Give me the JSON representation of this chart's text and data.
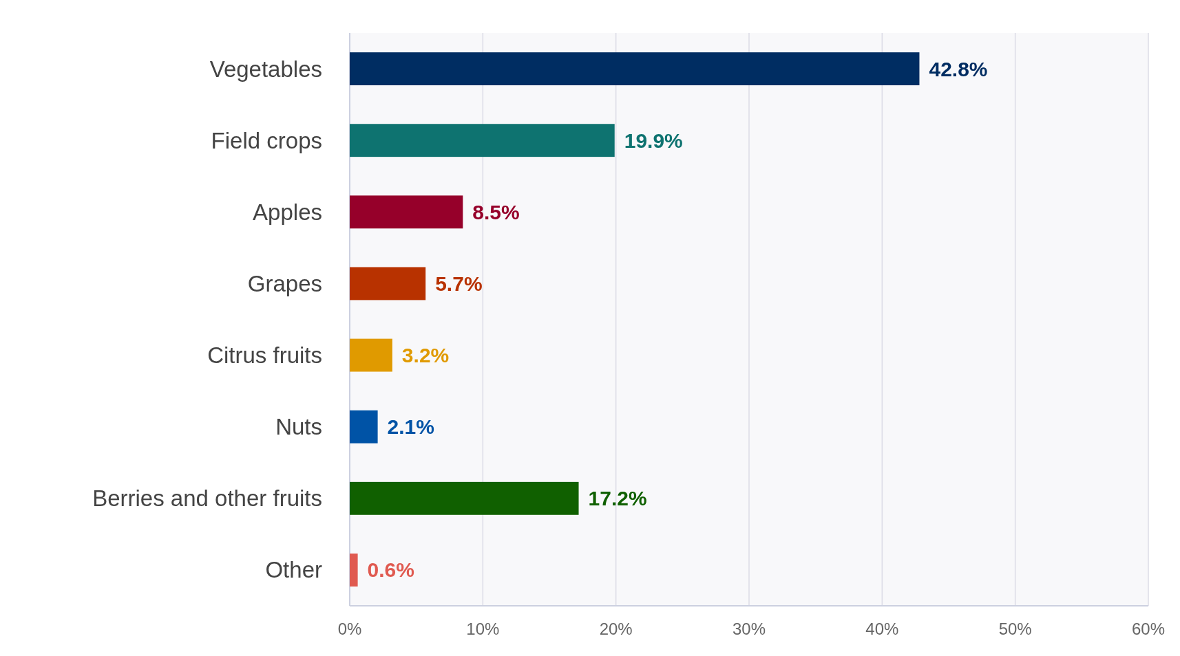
{
  "chart_data": {
    "type": "bar",
    "orientation": "horizontal",
    "categories": [
      "Vegetables",
      "Field crops",
      "Apples",
      "Grapes",
      "Citrus fruits",
      "Nuts",
      "Berries and other fruits",
      "Other"
    ],
    "values": [
      42.8,
      19.9,
      8.5,
      5.7,
      3.2,
      2.1,
      17.2,
      0.6
    ],
    "colors": [
      "#002d62",
      "#0e7370",
      "#96002a",
      "#b83200",
      "#e09a00",
      "#0053a6",
      "#106000",
      "#e05a50"
    ],
    "value_labels": [
      "42.8%",
      "19.9%",
      "8.5%",
      "5.7%",
      "3.2%",
      "2.1%",
      "17.2%",
      "0.6%"
    ],
    "xlim": [
      0,
      60
    ],
    "xticks": [
      {
        "value": 0,
        "label": "0%"
      },
      {
        "value": 10,
        "label": "10%"
      },
      {
        "value": 20,
        "label": "20%"
      },
      {
        "value": 30,
        "label": "30%"
      },
      {
        "value": 40,
        "label": "40%"
      },
      {
        "value": 50,
        "label": "50%"
      },
      {
        "value": 60,
        "label": "60%"
      }
    ],
    "grid": "x"
  }
}
